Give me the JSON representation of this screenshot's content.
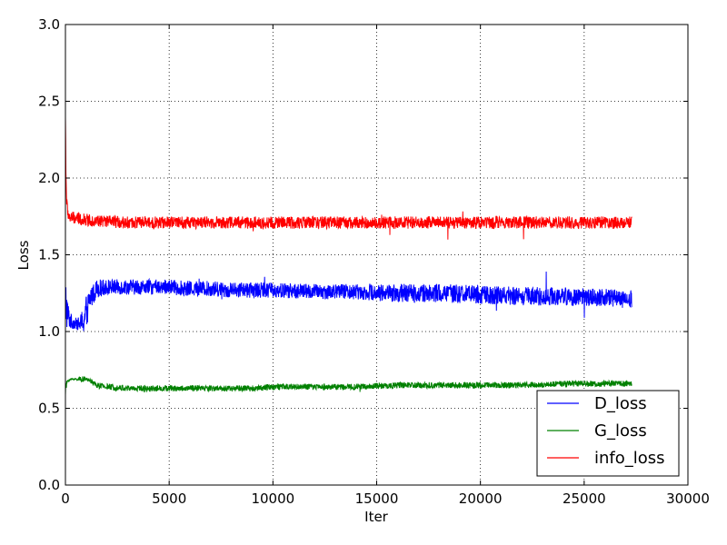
{
  "chart_data": {
    "type": "line",
    "title": "",
    "xlabel": "Iter",
    "ylabel": "Loss",
    "xlim": [
      0,
      30000
    ],
    "ylim": [
      0.0,
      3.0
    ],
    "xticks": [
      0,
      5000,
      10000,
      15000,
      20000,
      25000,
      30000
    ],
    "xtick_labels": [
      "0",
      "5000",
      "10000",
      "15000",
      "20000",
      "25000",
      "30000"
    ],
    "yticks": [
      0.0,
      0.5,
      1.0,
      1.5,
      2.0,
      2.5,
      3.0
    ],
    "ytick_labels": [
      "0.0",
      "0.5",
      "1.0",
      "1.5",
      "2.0",
      "2.5",
      "3.0"
    ],
    "grid": true,
    "legend_position": "bottom-right",
    "series": [
      {
        "name": "D_loss",
        "color": "#0000ff",
        "x": [
          0,
          100,
          200,
          300,
          400,
          500,
          600,
          700,
          800,
          900,
          1000,
          1200,
          1500,
          2000,
          3000,
          4000,
          5000,
          6000,
          7000,
          8000,
          9000,
          10000,
          12000,
          14000,
          16000,
          18000,
          20000,
          22000,
          24000,
          26000,
          27300
        ],
        "y": [
          1.2,
          1.12,
          1.08,
          1.06,
          1.06,
          1.05,
          1.05,
          1.05,
          1.06,
          1.08,
          1.12,
          1.22,
          1.28,
          1.29,
          1.29,
          1.29,
          1.29,
          1.28,
          1.28,
          1.27,
          1.27,
          1.27,
          1.26,
          1.26,
          1.25,
          1.25,
          1.24,
          1.23,
          1.23,
          1.22,
          1.21
        ],
        "noise": [
          0.2,
          0.1,
          0.06,
          0.05,
          0.04,
          0.04,
          0.04,
          0.05,
          0.08,
          0.1,
          0.12,
          0.08,
          0.06,
          0.05,
          0.05,
          0.05,
          0.05,
          0.05,
          0.05,
          0.05,
          0.05,
          0.05,
          0.05,
          0.05,
          0.06,
          0.06,
          0.06,
          0.06,
          0.06,
          0.06,
          0.06
        ]
      },
      {
        "name": "G_loss",
        "color": "#008000",
        "x": [
          0,
          100,
          300,
          500,
          800,
          1000,
          1200,
          1500,
          2000,
          3000,
          4000,
          5000,
          6000,
          7000,
          8000,
          9000,
          10000,
          12000,
          14000,
          16000,
          18000,
          20000,
          22000,
          24000,
          26000,
          27300
        ],
        "y": [
          0.62,
          0.68,
          0.69,
          0.69,
          0.69,
          0.69,
          0.68,
          0.65,
          0.64,
          0.63,
          0.63,
          0.63,
          0.63,
          0.63,
          0.63,
          0.63,
          0.64,
          0.64,
          0.64,
          0.65,
          0.65,
          0.65,
          0.65,
          0.66,
          0.66,
          0.66
        ],
        "noise": [
          0.04,
          0.01,
          0.005,
          0.005,
          0.02,
          0.01,
          0.015,
          0.02,
          0.02,
          0.02,
          0.02,
          0.02,
          0.02,
          0.02,
          0.02,
          0.02,
          0.02,
          0.02,
          0.02,
          0.02,
          0.02,
          0.02,
          0.02,
          0.02,
          0.02,
          0.02
        ]
      },
      {
        "name": "info_loss",
        "color": "#ff0000",
        "x": [
          0,
          30,
          60,
          100,
          200,
          400,
          800,
          1500,
          3000,
          5000,
          7000,
          10000,
          13000,
          16000,
          19000,
          22000,
          25000,
          27300
        ],
        "y": [
          2.4,
          2.0,
          1.85,
          1.78,
          1.74,
          1.74,
          1.73,
          1.72,
          1.71,
          1.71,
          1.71,
          1.71,
          1.71,
          1.71,
          1.71,
          1.71,
          1.71,
          1.71
        ],
        "noise": [
          0.05,
          0.06,
          0.05,
          0.04,
          0.04,
          0.04,
          0.04,
          0.04,
          0.04,
          0.04,
          0.04,
          0.04,
          0.04,
          0.04,
          0.04,
          0.04,
          0.04,
          0.04
        ]
      }
    ]
  }
}
